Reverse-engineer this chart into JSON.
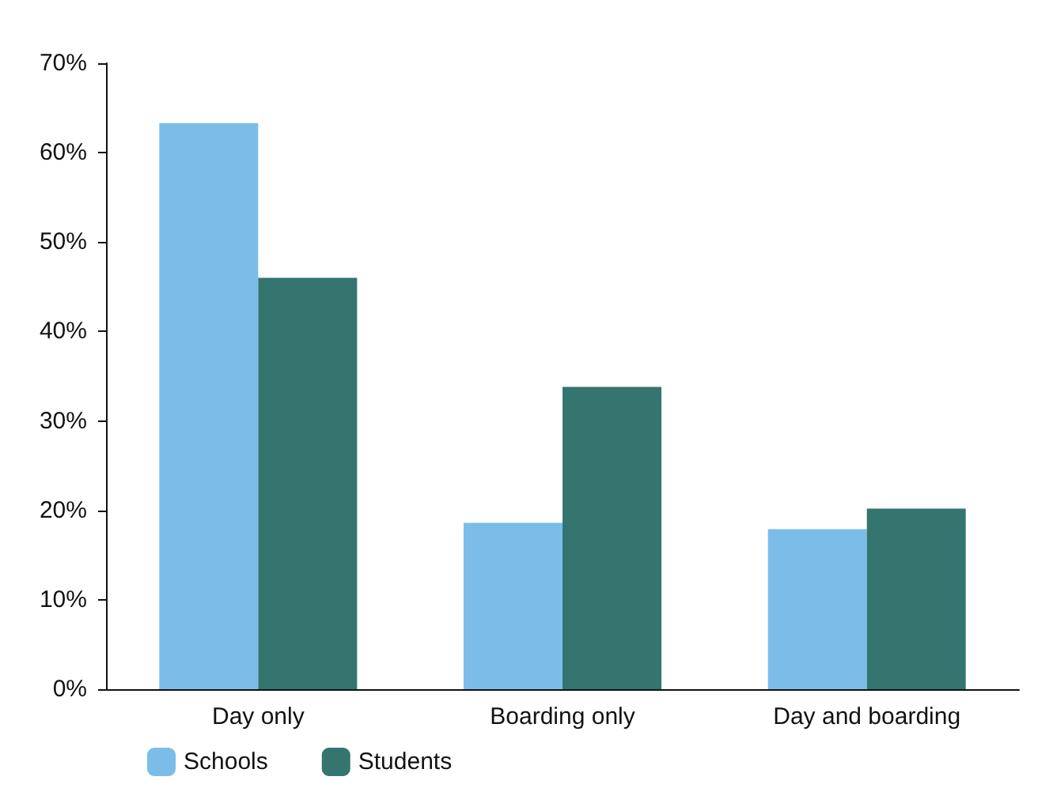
{
  "chart_data": {
    "type": "bar",
    "categories": [
      "Day only",
      "Boarding only",
      "Day and boarding"
    ],
    "series": [
      {
        "name": "Schools",
        "color": "#7bbde8",
        "values": [
          63.3,
          18.6,
          17.9
        ]
      },
      {
        "name": "Students",
        "color": "#357570",
        "values": [
          46,
          33.8,
          20.2
        ]
      }
    ],
    "ylim": [
      0,
      70
    ],
    "yticks": [
      {
        "value": 0,
        "label": "0%"
      },
      {
        "value": 10,
        "label": "10%"
      },
      {
        "value": 20,
        "label": "20%"
      },
      {
        "value": 30,
        "label": "30%"
      },
      {
        "value": 40,
        "label": "40%"
      },
      {
        "value": 50,
        "label": "50%"
      },
      {
        "value": 60,
        "label": "60%"
      },
      {
        "value": 70,
        "label": "70%"
      }
    ],
    "grid": false,
    "legend": "bottom left"
  }
}
